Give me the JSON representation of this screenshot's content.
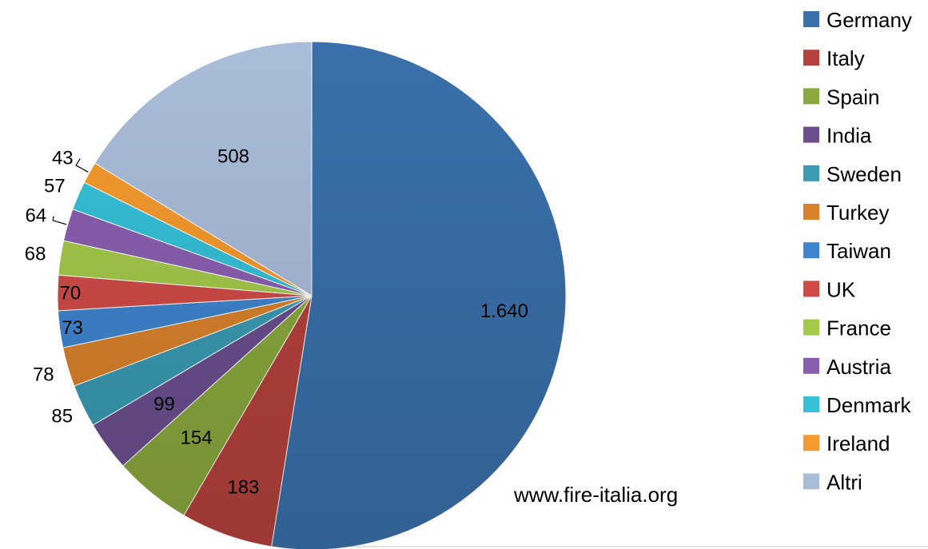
{
  "chart_data": {
    "type": "pie",
    "slices": [
      {
        "label": "Germany",
        "value": 1640,
        "display": "1.640",
        "color": "#3a70ab"
      },
      {
        "label": "Italy",
        "value": 183,
        "display": "183",
        "color": "#b5423c"
      },
      {
        "label": "Spain",
        "value": 154,
        "display": "154",
        "color": "#8aa83d"
      },
      {
        "label": "India",
        "value": 99,
        "display": "99",
        "color": "#6b4f8f"
      },
      {
        "label": "Sweden",
        "value": 85,
        "display": "85",
        "color": "#3a9bb3"
      },
      {
        "label": "Turkey",
        "value": 78,
        "display": "78",
        "color": "#d9822b"
      },
      {
        "label": "Taiwan",
        "value": 73,
        "display": "73",
        "color": "#3f85cf"
      },
      {
        "label": "UK",
        "value": 70,
        "display": "70",
        "color": "#d04b47"
      },
      {
        "label": "France",
        "value": 68,
        "display": "68",
        "color": "#a3c94a"
      },
      {
        "label": "Austria",
        "value": 64,
        "display": "64",
        "color": "#8a5fb0"
      },
      {
        "label": "Denmark",
        "value": 57,
        "display": "57",
        "color": "#35c0d8"
      },
      {
        "label": "Ireland",
        "value": 43,
        "display": "43",
        "color": "#f59a2e"
      },
      {
        "label": "Altri",
        "value": 508,
        "display": "508",
        "color": "#a9bcd9"
      }
    ],
    "legend_position": "right",
    "annotation": "www.fire-italia.org"
  }
}
